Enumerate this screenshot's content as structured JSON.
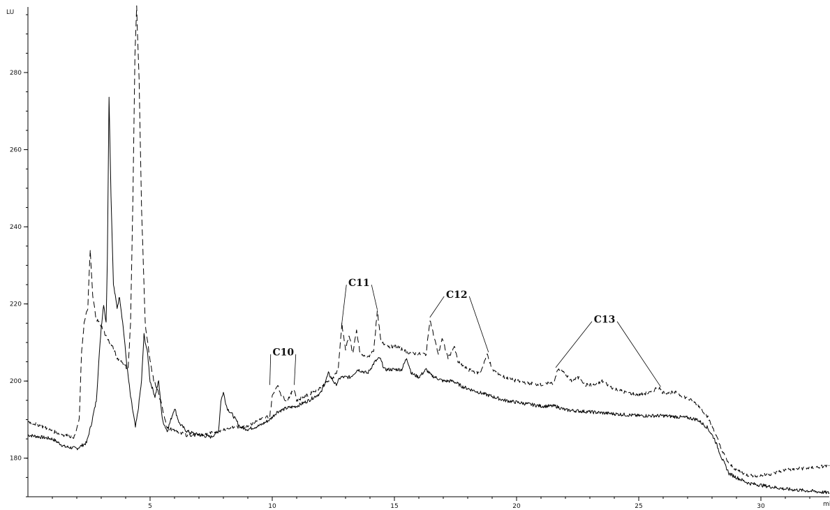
{
  "chart_data": {
    "type": "line",
    "ylabel": "LU",
    "xlabel": "mi",
    "xlim": [
      0,
      32.8
    ],
    "ylim": [
      170,
      297
    ],
    "x_ticks": [
      5,
      10,
      15,
      20,
      25,
      30
    ],
    "x_tick_labels": [
      "5",
      "10",
      "15",
      "20",
      "25",
      "30"
    ],
    "y_ticks": [
      180,
      200,
      220,
      240,
      260,
      280
    ],
    "y_tick_labels": [
      "180",
      "200",
      "220",
      "240",
      "260",
      "280"
    ],
    "grid": false,
    "series": [
      {
        "style": "solid",
        "points": [
          [
            0,
            186
          ],
          [
            1,
            185
          ],
          [
            1.5,
            183
          ],
          [
            2,
            182.5
          ],
          [
            2.4,
            184
          ],
          [
            2.6,
            189
          ],
          [
            2.8,
            195
          ],
          [
            2.9,
            205
          ],
          [
            3.0,
            214
          ],
          [
            3.1,
            220
          ],
          [
            3.2,
            215
          ],
          [
            3.25,
            232
          ],
          [
            3.32,
            274
          ],
          [
            3.4,
            248
          ],
          [
            3.5,
            225
          ],
          [
            3.65,
            219
          ],
          [
            3.75,
            222
          ],
          [
            3.9,
            214
          ],
          [
            4.05,
            204
          ],
          [
            4.2,
            196
          ],
          [
            4.3,
            192
          ],
          [
            4.4,
            188
          ],
          [
            4.5,
            192
          ],
          [
            4.65,
            200
          ],
          [
            4.75,
            212
          ],
          [
            4.9,
            207
          ],
          [
            5.0,
            200
          ],
          [
            5.2,
            196
          ],
          [
            5.35,
            200
          ],
          [
            5.5,
            190
          ],
          [
            5.7,
            187
          ],
          [
            5.9,
            191
          ],
          [
            6.0,
            193
          ],
          [
            6.2,
            189
          ],
          [
            6.5,
            187
          ],
          [
            7.0,
            186
          ],
          [
            7.5,
            185.5
          ],
          [
            7.8,
            187
          ],
          [
            7.9,
            195
          ],
          [
            8.0,
            197
          ],
          [
            8.15,
            193
          ],
          [
            8.4,
            191
          ],
          [
            8.7,
            188
          ],
          [
            9.0,
            187.5
          ],
          [
            9.5,
            188.5
          ],
          [
            9.9,
            190
          ],
          [
            10.2,
            192
          ],
          [
            10.6,
            193
          ],
          [
            11.0,
            193.5
          ],
          [
            11.5,
            195
          ],
          [
            12.0,
            197
          ],
          [
            12.3,
            202
          ],
          [
            12.6,
            199
          ],
          [
            12.8,
            201
          ],
          [
            13.2,
            201
          ],
          [
            13.5,
            203
          ],
          [
            13.9,
            202
          ],
          [
            14.2,
            205
          ],
          [
            14.4,
            206
          ],
          [
            14.6,
            203
          ],
          [
            15.0,
            203
          ],
          [
            15.3,
            203
          ],
          [
            15.5,
            206
          ],
          [
            15.7,
            202
          ],
          [
            16.0,
            201
          ],
          [
            16.3,
            203
          ],
          [
            16.5,
            201.5
          ],
          [
            17.0,
            200
          ],
          [
            17.4,
            200
          ],
          [
            17.8,
            198.5
          ],
          [
            18.5,
            197
          ],
          [
            19.0,
            196
          ],
          [
            19.5,
            195
          ],
          [
            20.0,
            194.5
          ],
          [
            20.5,
            194
          ],
          [
            21.0,
            193.5
          ],
          [
            21.6,
            193.5
          ],
          [
            22.0,
            192.5
          ],
          [
            23.0,
            192
          ],
          [
            24.0,
            191.5
          ],
          [
            25.0,
            191
          ],
          [
            26.0,
            191
          ],
          [
            27.0,
            190.5
          ],
          [
            27.4,
            190
          ],
          [
            27.8,
            188
          ],
          [
            28.1,
            185
          ],
          [
            28.4,
            180
          ],
          [
            28.7,
            176
          ],
          [
            29.0,
            175
          ],
          [
            29.5,
            173.5
          ],
          [
            30.0,
            173
          ],
          [
            30.5,
            172.5
          ],
          [
            31.0,
            172
          ],
          [
            32.0,
            171.5
          ],
          [
            32.8,
            171
          ]
        ]
      },
      {
        "style": "dashed",
        "points": [
          [
            0,
            189.5
          ],
          [
            0.5,
            188.5
          ],
          [
            1.0,
            187
          ],
          [
            1.5,
            186
          ],
          [
            1.9,
            185.5
          ],
          [
            2.1,
            190
          ],
          [
            2.2,
            208
          ],
          [
            2.3,
            215
          ],
          [
            2.45,
            219
          ],
          [
            2.55,
            234
          ],
          [
            2.65,
            222
          ],
          [
            2.8,
            216
          ],
          [
            2.95,
            215
          ],
          [
            3.1,
            213
          ],
          [
            3.25,
            211
          ],
          [
            3.45,
            209
          ],
          [
            3.65,
            206
          ],
          [
            3.85,
            205
          ],
          [
            4.1,
            203
          ],
          [
            4.2,
            215
          ],
          [
            4.3,
            248
          ],
          [
            4.38,
            285
          ],
          [
            4.45,
            297
          ],
          [
            4.55,
            278
          ],
          [
            4.65,
            245
          ],
          [
            4.8,
            215
          ],
          [
            4.9,
            210
          ],
          [
            5.0,
            205
          ],
          [
            5.15,
            200
          ],
          [
            5.3,
            198
          ],
          [
            5.5,
            193
          ],
          [
            5.7,
            188
          ],
          [
            6.0,
            187
          ],
          [
            6.5,
            186
          ],
          [
            7.0,
            186
          ],
          [
            7.5,
            186.5
          ],
          [
            8.0,
            187.5
          ],
          [
            8.5,
            188
          ],
          [
            9.0,
            188.5
          ],
          [
            9.5,
            190
          ],
          [
            9.9,
            191
          ],
          [
            10.0,
            196
          ],
          [
            10.2,
            199
          ],
          [
            10.4,
            196
          ],
          [
            10.6,
            195
          ],
          [
            10.9,
            198
          ],
          [
            11.0,
            195
          ],
          [
            11.5,
            196.5
          ],
          [
            12.0,
            198.5
          ],
          [
            12.5,
            201
          ],
          [
            12.7,
            203
          ],
          [
            12.85,
            215
          ],
          [
            13.0,
            208
          ],
          [
            13.15,
            212
          ],
          [
            13.3,
            207
          ],
          [
            13.45,
            213
          ],
          [
            13.6,
            207
          ],
          [
            13.9,
            206
          ],
          [
            14.15,
            208
          ],
          [
            14.3,
            218
          ],
          [
            14.45,
            210
          ],
          [
            14.8,
            209
          ],
          [
            15.1,
            209
          ],
          [
            15.5,
            207.5
          ],
          [
            16.0,
            207
          ],
          [
            16.3,
            207
          ],
          [
            16.45,
            216
          ],
          [
            16.6,
            212
          ],
          [
            16.8,
            207
          ],
          [
            16.95,
            211
          ],
          [
            17.2,
            206
          ],
          [
            17.45,
            209
          ],
          [
            17.6,
            205
          ],
          [
            18.0,
            203
          ],
          [
            18.5,
            202
          ],
          [
            18.8,
            207
          ],
          [
            19.0,
            203
          ],
          [
            19.5,
            201
          ],
          [
            20.0,
            200
          ],
          [
            20.5,
            199.5
          ],
          [
            21.0,
            199
          ],
          [
            21.5,
            199.5
          ],
          [
            21.7,
            203
          ],
          [
            22.0,
            202
          ],
          [
            22.2,
            200
          ],
          [
            22.6,
            201
          ],
          [
            22.8,
            199
          ],
          [
            23.2,
            199
          ],
          [
            23.5,
            200
          ],
          [
            24.0,
            198
          ],
          [
            24.5,
            197
          ],
          [
            25.0,
            196.5
          ],
          [
            25.5,
            197
          ],
          [
            25.8,
            198.5
          ],
          [
            26.0,
            197
          ],
          [
            26.5,
            197
          ],
          [
            27.0,
            195.5
          ],
          [
            27.4,
            194
          ],
          [
            27.8,
            191
          ],
          [
            28.1,
            187
          ],
          [
            28.4,
            182
          ],
          [
            28.7,
            178.5
          ],
          [
            29.0,
            177
          ],
          [
            29.5,
            175.5
          ],
          [
            30.0,
            175.5
          ],
          [
            30.5,
            176
          ],
          [
            31.0,
            177
          ],
          [
            32.0,
            177.5
          ],
          [
            32.8,
            178
          ]
        ]
      }
    ],
    "annotations": [
      {
        "text": "C10",
        "x": 10.45,
        "y": 207.5,
        "points": [
          [
            9.9,
            199
          ],
          [
            10.9,
            199
          ]
        ]
      },
      {
        "text": "C11",
        "x": 13.55,
        "y": 225.5,
        "points": [
          [
            12.85,
            215
          ],
          [
            14.3,
            218.5
          ]
        ]
      },
      {
        "text": "C12",
        "x": 17.55,
        "y": 222.5,
        "points": [
          [
            16.45,
            216.5
          ],
          [
            18.85,
            207.5
          ]
        ]
      },
      {
        "text": "C13",
        "x": 23.6,
        "y": 216,
        "points": [
          [
            21.6,
            203.5
          ],
          [
            25.9,
            198.5
          ]
        ]
      }
    ]
  }
}
